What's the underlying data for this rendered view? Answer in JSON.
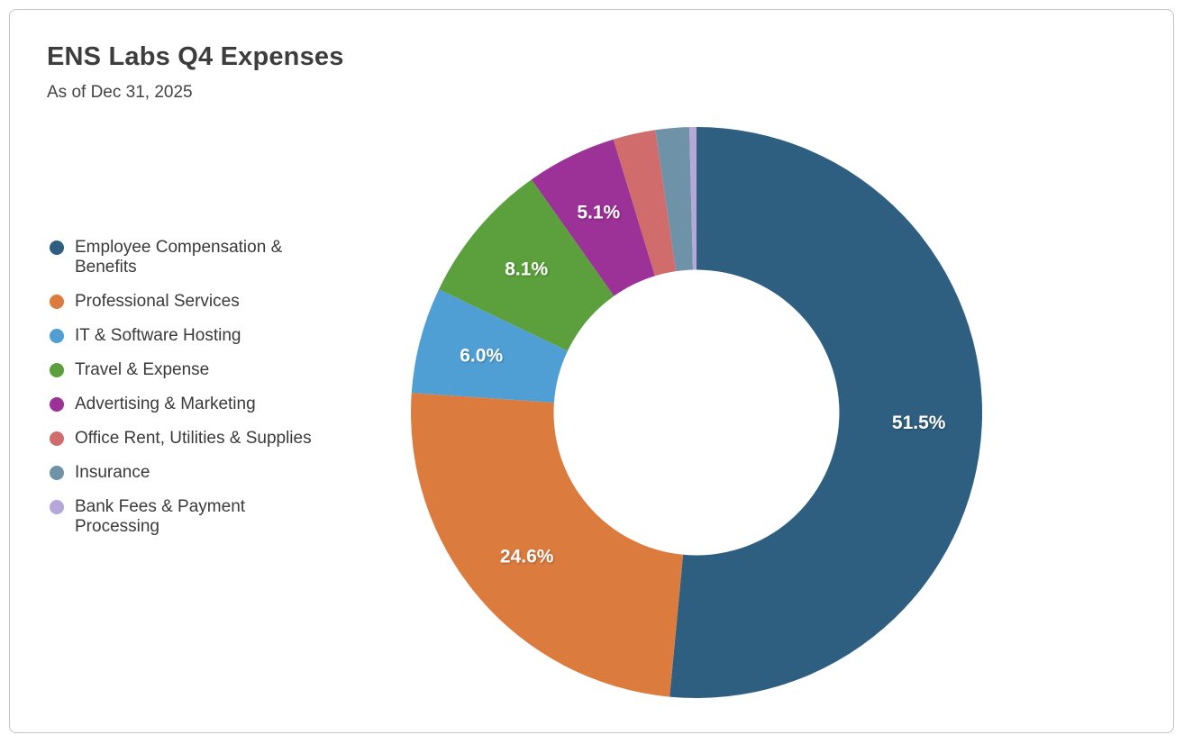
{
  "chart_data": {
    "type": "pie",
    "variant": "donut",
    "title": "ENS Labs Q4 Expenses",
    "subtitle": "As of Dec 31, 2025",
    "legend_position": "left",
    "start_angle_deg": 0,
    "direction": "clockwise",
    "inner_radius_ratio": 0.5,
    "slice_label_color": "#ffffff",
    "categories": [
      "Employee Compensation & Benefits",
      "Professional Services",
      "IT & Software Hosting",
      "Travel & Expense",
      "Advertising & Marketing",
      "Office Rent, Utilities & Supplies",
      "Insurance",
      "Bank Fees & Payment Processing"
    ],
    "values": [
      51.5,
      24.6,
      6.0,
      8.1,
      5.1,
      2.4,
      1.9,
      0.4
    ],
    "display_labels": [
      "51.5%",
      "24.6%",
      "6.0%",
      "8.1%",
      "5.1%",
      "",
      "",
      ""
    ],
    "colors": [
      "#2e5f80",
      "#dc7b3e",
      "#4f9fd5",
      "#5ba03c",
      "#9c3197",
      "#d06c6c",
      "#6e93a8",
      "#b5a8d9"
    ]
  }
}
